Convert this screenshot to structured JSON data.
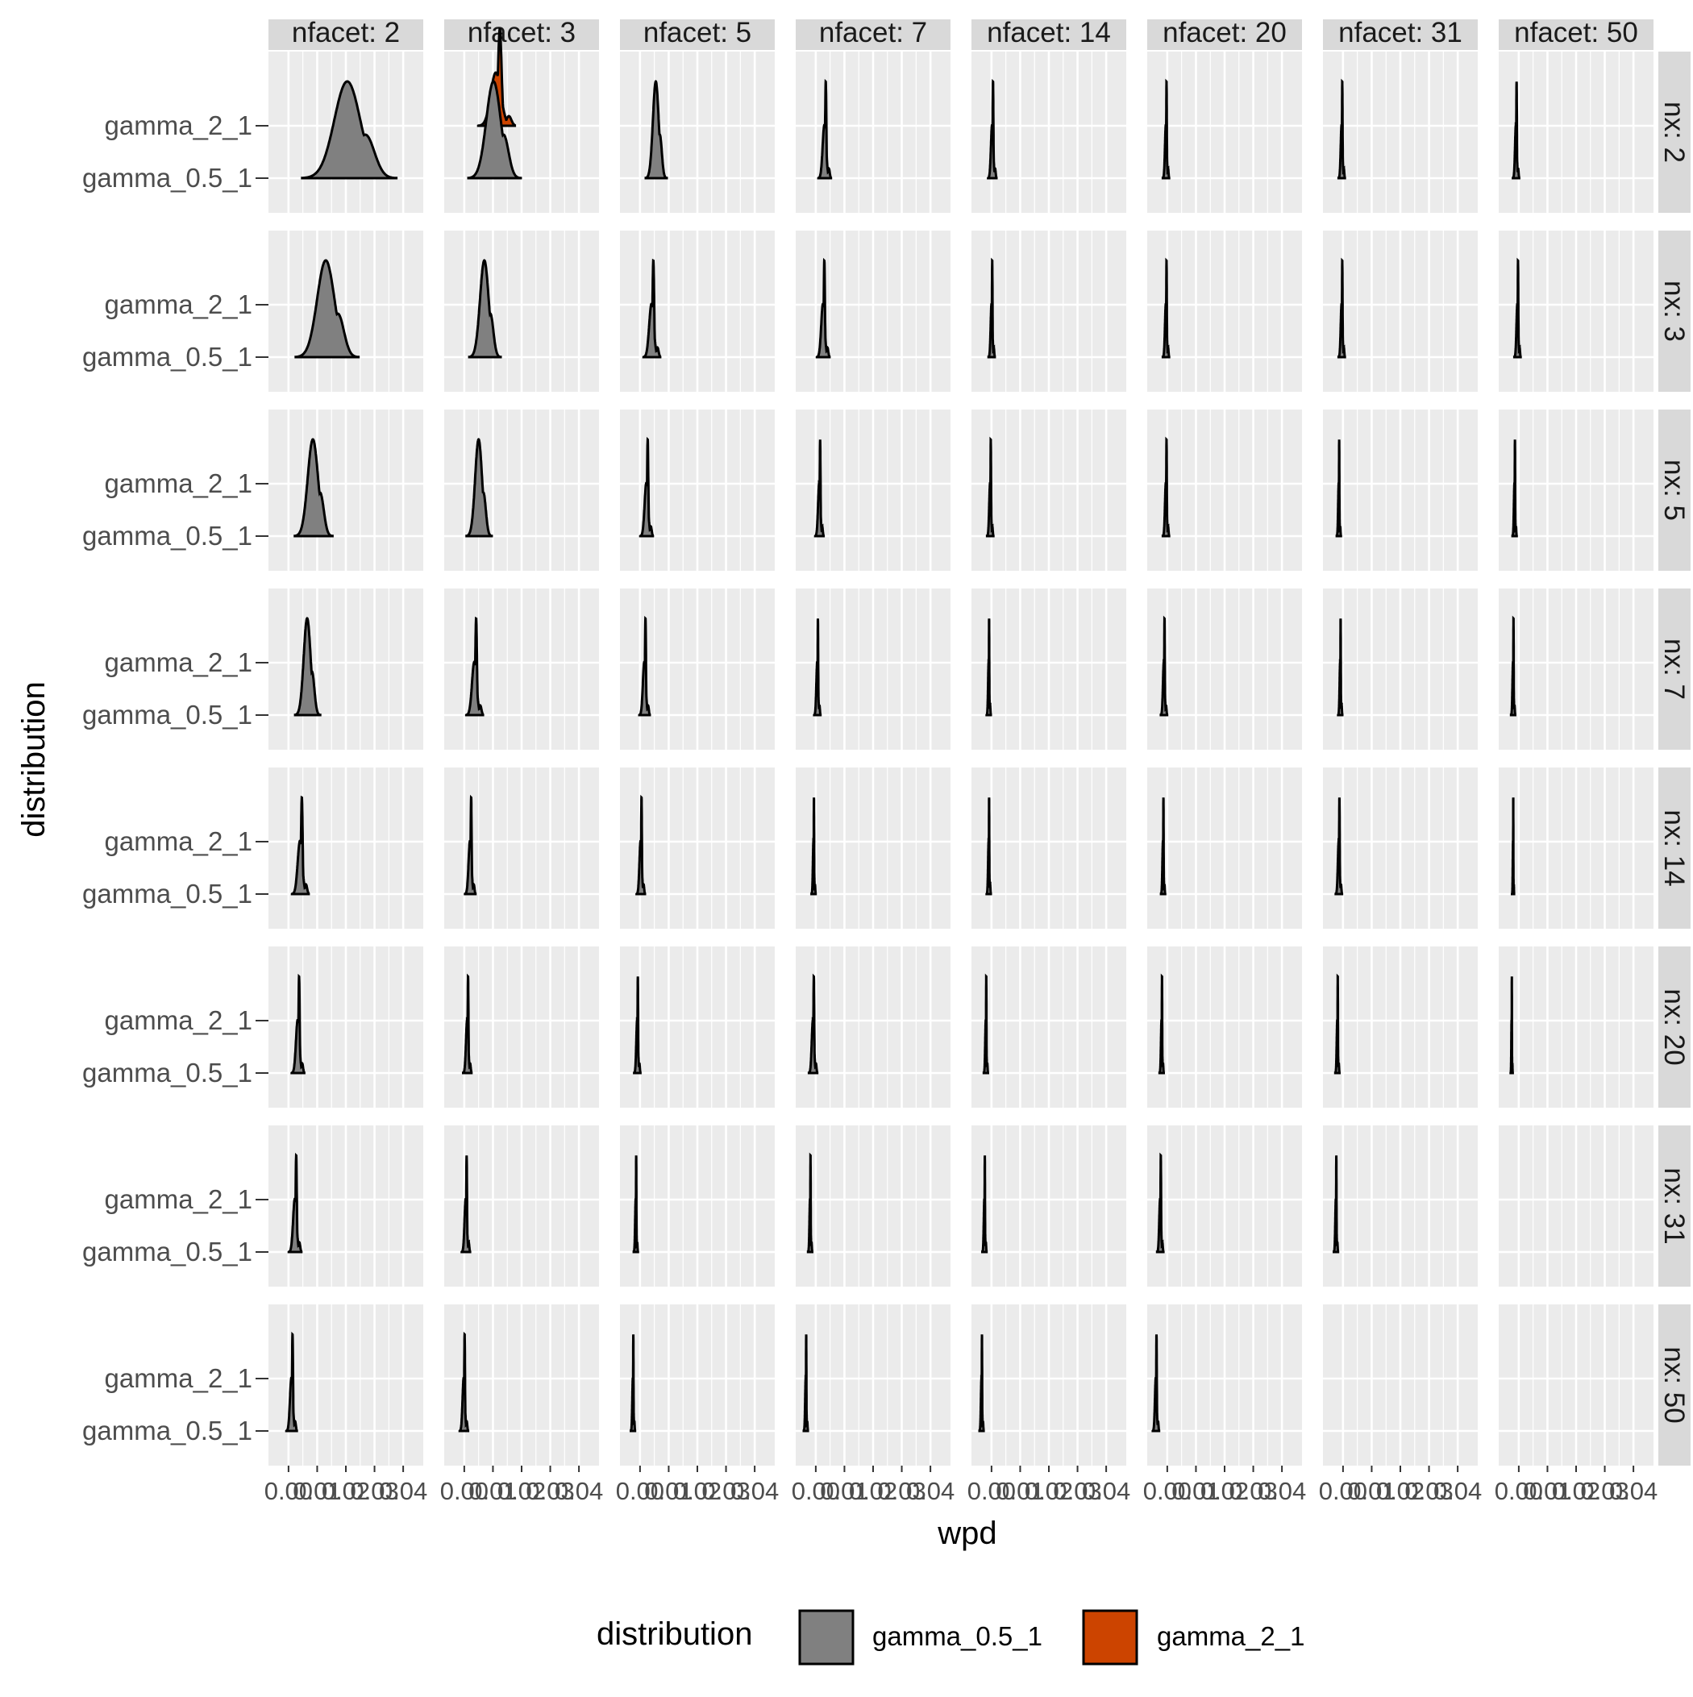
{
  "chart_data": {
    "type": "ridgeline",
    "xlabel": "wpd",
    "ylabel": "distribution",
    "x_ticks": [
      "0.00",
      "0.01",
      "0.02",
      "0.03",
      "0.04"
    ],
    "xlim": [
      -0.007,
      0.047
    ],
    "y_categories": [
      "gamma_0.5_1",
      "gamma_2_1"
    ],
    "col_facet_labels": [
      "nfacet: 2",
      "nfacet: 3",
      "nfacet: 5",
      "nfacet: 7",
      "nfacet: 14",
      "nfacet: 20",
      "nfacet: 31",
      "nfacet: 50"
    ],
    "row_facet_labels": [
      "nx: 2",
      "nx: 3",
      "nx: 5",
      "nx: 7",
      "nx: 14",
      "nx: 20",
      "nx: 31",
      "nx: 50"
    ],
    "legend": {
      "title": "distribution",
      "position": "bottom",
      "entries": [
        {
          "label": "gamma_0.5_1",
          "color": "#808080"
        },
        {
          "label": "gamma_2_1",
          "color": "#CC4400"
        }
      ]
    },
    "colors": {
      "panel_bg": "#EBEBEB",
      "grid": "#FFFFFF",
      "strip_bg": "#D9D9D9",
      "gamma_0.5_1": "#808080",
      "gamma_2_1": "#CC4400"
    },
    "panels": [
      {
        "nx": 2,
        "nfacet": 2,
        "center": 0.0205,
        "spread": 0.0045
      },
      {
        "nx": 2,
        "nfacet": 3,
        "center": 0.0102,
        "spread": 0.0025
      },
      {
        "nx": 2,
        "nfacet": 5,
        "center": 0.0055,
        "spread": 0.001
      },
      {
        "nx": 2,
        "nfacet": 7,
        "center": 0.003,
        "spread": 0.0006
      },
      {
        "nx": 2,
        "nfacet": 14,
        "center": 0.0002,
        "spread": 0.0004
      },
      {
        "nx": 2,
        "nfacet": 20,
        "center": -0.0005,
        "spread": 0.0003
      },
      {
        "nx": 2,
        "nfacet": 31,
        "center": -0.0005,
        "spread": 0.0003
      },
      {
        "nx": 2,
        "nfacet": 50,
        "center": -0.001,
        "spread": 0.0003
      },
      {
        "nx": 3,
        "nfacet": 2,
        "center": 0.013,
        "spread": 0.003
      },
      {
        "nx": 3,
        "nfacet": 3,
        "center": 0.007,
        "spread": 0.0015
      },
      {
        "nx": 3,
        "nfacet": 5,
        "center": 0.004,
        "spread": 0.0008
      },
      {
        "nx": 3,
        "nfacet": 7,
        "center": 0.0025,
        "spread": 0.0006
      },
      {
        "nx": 3,
        "nfacet": 14,
        "center": 0.0,
        "spread": 0.0003
      },
      {
        "nx": 3,
        "nfacet": 20,
        "center": -0.0005,
        "spread": 0.0003
      },
      {
        "nx": 3,
        "nfacet": 31,
        "center": -0.0005,
        "spread": 0.0003
      },
      {
        "nx": 3,
        "nfacet": 50,
        "center": -0.0005,
        "spread": 0.0003
      },
      {
        "nx": 5,
        "nfacet": 2,
        "center": 0.0085,
        "spread": 0.0018
      },
      {
        "nx": 5,
        "nfacet": 3,
        "center": 0.005,
        "spread": 0.0012
      },
      {
        "nx": 5,
        "nfacet": 5,
        "center": 0.0022,
        "spread": 0.0006
      },
      {
        "nx": 5,
        "nfacet": 7,
        "center": 0.0012,
        "spread": 0.0004
      },
      {
        "nx": 5,
        "nfacet": 14,
        "center": -0.0005,
        "spread": 0.0003
      },
      {
        "nx": 5,
        "nfacet": 20,
        "center": -0.0005,
        "spread": 0.0003
      },
      {
        "nx": 5,
        "nfacet": 31,
        "center": -0.0015,
        "spread": 0.0002
      },
      {
        "nx": 5,
        "nfacet": 50,
        "center": -0.0015,
        "spread": 0.0002
      },
      {
        "nx": 7,
        "nfacet": 2,
        "center": 0.0065,
        "spread": 0.0012
      },
      {
        "nx": 7,
        "nfacet": 3,
        "center": 0.0035,
        "spread": 0.0008
      },
      {
        "nx": 7,
        "nfacet": 5,
        "center": 0.0015,
        "spread": 0.0005
      },
      {
        "nx": 7,
        "nfacet": 7,
        "center": 0.0005,
        "spread": 0.0003
      },
      {
        "nx": 7,
        "nfacet": 14,
        "center": -0.001,
        "spread": 0.0002
      },
      {
        "nx": 7,
        "nfacet": 20,
        "center": -0.0012,
        "spread": 0.0003
      },
      {
        "nx": 7,
        "nfacet": 31,
        "center": -0.001,
        "spread": 0.0002
      },
      {
        "nx": 7,
        "nfacet": 50,
        "center": -0.002,
        "spread": 0.0002
      },
      {
        "nx": 14,
        "nfacet": 2,
        "center": 0.004,
        "spread": 0.0008
      },
      {
        "nx": 14,
        "nfacet": 3,
        "center": 0.002,
        "spread": 0.0005
      },
      {
        "nx": 14,
        "nfacet": 5,
        "center": 0.0002,
        "spread": 0.0004
      },
      {
        "nx": 14,
        "nfacet": 7,
        "center": -0.0008,
        "spread": 0.0002
      },
      {
        "nx": 14,
        "nfacet": 14,
        "center": -0.001,
        "spread": 0.0002
      },
      {
        "nx": 14,
        "nfacet": 20,
        "center": -0.0015,
        "spread": 0.0002
      },
      {
        "nx": 14,
        "nfacet": 31,
        "center": -0.0015,
        "spread": 0.0003
      },
      {
        "nx": 14,
        "nfacet": 50,
        "center": -0.002,
        "spread": 0.0001
      },
      {
        "nx": 20,
        "nfacet": 2,
        "center": 0.0032,
        "spread": 0.0006
      },
      {
        "nx": 20,
        "nfacet": 3,
        "center": 0.001,
        "spread": 0.0004
      },
      {
        "nx": 20,
        "nfacet": 5,
        "center": -0.001,
        "spread": 0.0003
      },
      {
        "nx": 20,
        "nfacet": 7,
        "center": -0.001,
        "spread": 0.0004
      },
      {
        "nx": 20,
        "nfacet": 14,
        "center": -0.002,
        "spread": 0.0002
      },
      {
        "nx": 20,
        "nfacet": 20,
        "center": -0.002,
        "spread": 0.0002
      },
      {
        "nx": 20,
        "nfacet": 31,
        "center": -0.002,
        "spread": 0.0002
      },
      {
        "nx": 20,
        "nfacet": 50,
        "center": -0.0025,
        "spread": 0.0001
      },
      {
        "nx": 31,
        "nfacet": 2,
        "center": 0.0022,
        "spread": 0.0006
      },
      {
        "nx": 31,
        "nfacet": 3,
        "center": 0.0005,
        "spread": 0.0004
      },
      {
        "nx": 31,
        "nfacet": 5,
        "center": -0.0015,
        "spread": 0.0002
      },
      {
        "nx": 31,
        "nfacet": 7,
        "center": -0.002,
        "spread": 0.0002
      },
      {
        "nx": 31,
        "nfacet": 14,
        "center": -0.0025,
        "spread": 0.0002
      },
      {
        "nx": 31,
        "nfacet": 20,
        "center": -0.0025,
        "spread": 0.0003
      },
      {
        "nx": 31,
        "nfacet": 31,
        "center": -0.0025,
        "spread": 0.0002
      },
      {
        "nx": 50,
        "nfacet": 2,
        "center": 0.001,
        "spread": 0.0005
      },
      {
        "nx": 50,
        "nfacet": 3,
        "center": -0.0002,
        "spread": 0.0004
      },
      {
        "nx": 50,
        "nfacet": 5,
        "center": -0.0025,
        "spread": 0.0002
      },
      {
        "nx": 50,
        "nfacet": 7,
        "center": -0.0035,
        "spread": 0.0002
      },
      {
        "nx": 50,
        "nfacet": 14,
        "center": -0.0035,
        "spread": 0.0002
      },
      {
        "nx": 50,
        "nfacet": 20,
        "center": -0.004,
        "spread": 0.0003
      }
    ]
  }
}
